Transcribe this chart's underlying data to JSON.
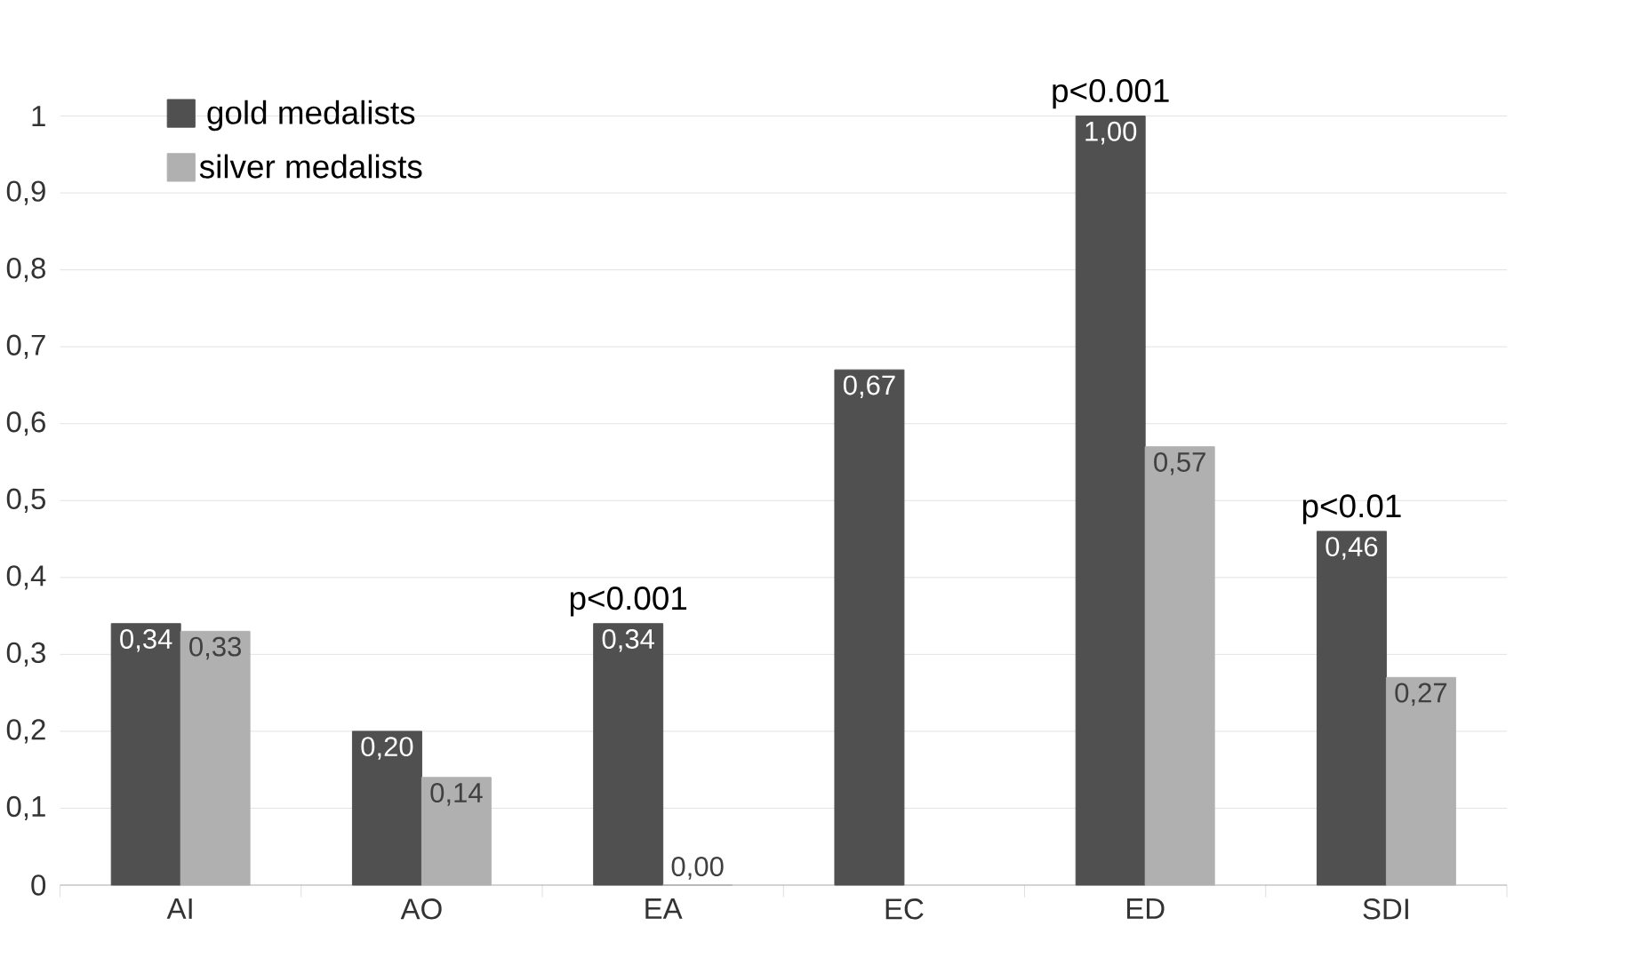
{
  "chart_data": {
    "type": "bar",
    "categories": [
      "AI",
      "AO",
      "EA",
      "EC",
      "ED",
      "SDI"
    ],
    "series": [
      {
        "name": "gold medalists",
        "color": "#505050",
        "values": [
          0.34,
          0.2,
          0.34,
          0.67,
          1.0,
          0.46
        ],
        "value_labels": [
          "0,34",
          "0,20",
          "0,34",
          "0,67",
          "1,00",
          "0,46"
        ]
      },
      {
        "name": "silver medalists",
        "color": "#b0b0b0",
        "values": [
          0.33,
          0.14,
          0.0,
          null,
          0.57,
          0.27
        ],
        "value_labels": [
          "0,33",
          "0,14",
          "0,00",
          null,
          "0,57",
          "0,27"
        ]
      }
    ],
    "ylim": [
      0,
      1
    ],
    "yticks": [
      0,
      {
        "value": 0.1,
        "label": "0,1"
      },
      {
        "value": 0.2,
        "label": "0,2"
      },
      {
        "value": 0.3,
        "label": "0,3"
      },
      {
        "value": 0.4,
        "label": "0,4"
      },
      {
        "value": 0.5,
        "label": "0,5"
      },
      {
        "value": 0.6,
        "label": "0,6"
      },
      {
        "value": 0.7,
        "label": "0,7"
      },
      {
        "value": 0.8,
        "label": "0,8"
      },
      {
        "value": 0.9,
        "label": "0,9"
      },
      1
    ],
    "grid": "y",
    "legend": "top left",
    "annotations": [
      {
        "text": "p<0.001",
        "x": "EA",
        "y": 0.34
      },
      {
        "text": "p<0.001",
        "x": "ED",
        "y": 1.0
      },
      {
        "text": "p<0.01",
        "x": "SDI",
        "y": 0.46
      }
    ]
  }
}
